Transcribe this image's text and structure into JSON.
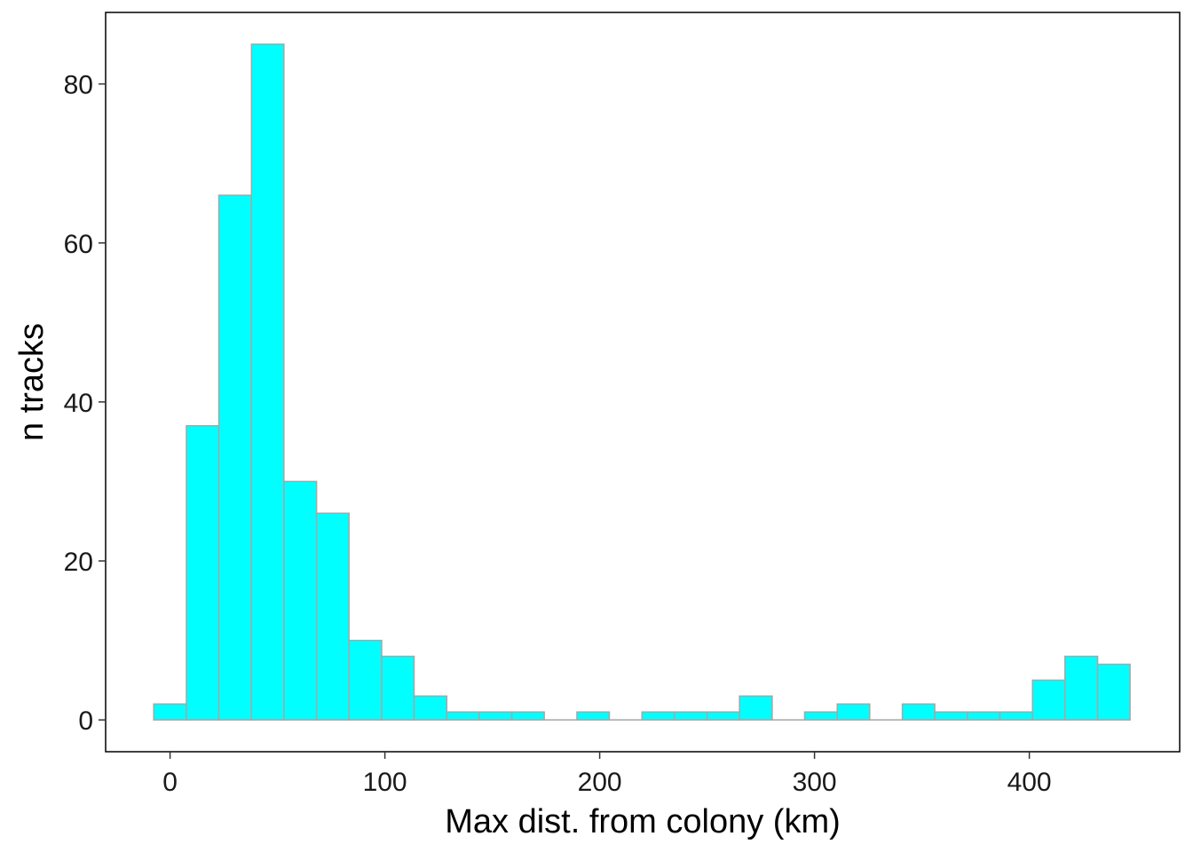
{
  "chart_data": {
    "type": "bar",
    "subtype": "histogram",
    "title": "",
    "xlabel": "Max dist. from colony (km)",
    "ylabel": "n tracks",
    "bin_width": 15.15,
    "bins": [
      {
        "start": -7.6,
        "end": 7.6,
        "count": 2
      },
      {
        "start": 7.6,
        "end": 22.7,
        "count": 37
      },
      {
        "start": 22.7,
        "end": 37.9,
        "count": 66
      },
      {
        "start": 37.9,
        "end": 53.0,
        "count": 85
      },
      {
        "start": 53.0,
        "end": 68.2,
        "count": 30
      },
      {
        "start": 68.2,
        "end": 83.3,
        "count": 26
      },
      {
        "start": 83.3,
        "end": 98.5,
        "count": 10
      },
      {
        "start": 98.5,
        "end": 113.6,
        "count": 8
      },
      {
        "start": 113.6,
        "end": 128.8,
        "count": 3
      },
      {
        "start": 128.8,
        "end": 143.9,
        "count": 1
      },
      {
        "start": 143.9,
        "end": 159.1,
        "count": 1
      },
      {
        "start": 159.1,
        "end": 174.2,
        "count": 1
      },
      {
        "start": 174.2,
        "end": 189.4,
        "count": 0
      },
      {
        "start": 189.4,
        "end": 204.5,
        "count": 1
      },
      {
        "start": 204.5,
        "end": 219.7,
        "count": 0
      },
      {
        "start": 219.7,
        "end": 234.8,
        "count": 1
      },
      {
        "start": 234.8,
        "end": 250.0,
        "count": 1
      },
      {
        "start": 250.0,
        "end": 265.1,
        "count": 1
      },
      {
        "start": 265.1,
        "end": 280.3,
        "count": 3
      },
      {
        "start": 280.3,
        "end": 295.4,
        "count": 0
      },
      {
        "start": 295.4,
        "end": 310.6,
        "count": 1
      },
      {
        "start": 310.6,
        "end": 325.7,
        "count": 2
      },
      {
        "start": 325.7,
        "end": 340.9,
        "count": 0
      },
      {
        "start": 340.9,
        "end": 356.0,
        "count": 2
      },
      {
        "start": 356.0,
        "end": 371.2,
        "count": 1
      },
      {
        "start": 371.2,
        "end": 386.3,
        "count": 1
      },
      {
        "start": 386.3,
        "end": 401.5,
        "count": 1
      },
      {
        "start": 401.5,
        "end": 416.6,
        "count": 5
      },
      {
        "start": 416.6,
        "end": 431.8,
        "count": 8
      },
      {
        "start": 431.8,
        "end": 446.9,
        "count": 7
      }
    ],
    "xlim": [
      -30,
      470
    ],
    "ylim": [
      -4,
      89
    ],
    "xticks": [
      0,
      100,
      200,
      300,
      400
    ],
    "yticks": [
      0,
      20,
      40,
      60,
      80
    ],
    "bar_fill": "#00ffff",
    "bar_stroke": "#a6a6a6",
    "grid": false,
    "legend": "none"
  }
}
